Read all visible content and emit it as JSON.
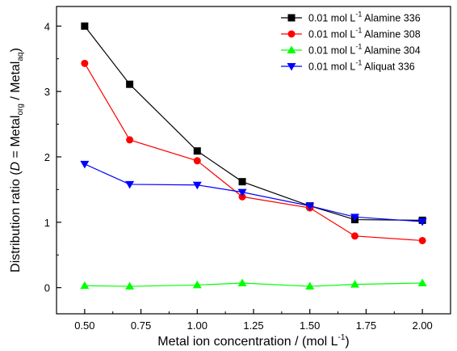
{
  "chart_data": {
    "type": "line",
    "x": [
      0.5,
      0.7,
      1.0,
      1.2,
      1.5,
      1.7,
      2.0
    ],
    "xlim": [
      0.375,
      2.125
    ],
    "ylim": [
      -0.4,
      4.3
    ],
    "xticks": [
      "0.50",
      "0.75",
      "1.00",
      "1.25",
      "1.50",
      "1.75",
      "2.00"
    ],
    "xtick_values": [
      0.5,
      0.75,
      1.0,
      1.25,
      1.5,
      1.75,
      2.0
    ],
    "yticks": [
      "0",
      "1",
      "2",
      "3",
      "4"
    ],
    "ytick_values": [
      0,
      1,
      2,
      3,
      4
    ],
    "xlabel": {
      "prefix": "Metal ion concentration / (mol L",
      "sup": "-1",
      "suffix": ")"
    },
    "ylabel": {
      "prefix": "Distribution ratio (",
      "italic": "D",
      "mid": " = Metal",
      "sub1": "org",
      "mid2": " / Metal",
      "sub2": "aq",
      "suffix": ")"
    },
    "grid": false,
    "legend_position": "top-right",
    "series": [
      {
        "name_prefix": "0.01 mol L",
        "name_sup": "-1",
        "name_suffix": " Alamine 336",
        "color": "#000000",
        "marker": "square",
        "values": [
          4.0,
          3.11,
          2.09,
          1.62,
          1.25,
          1.04,
          1.03
        ]
      },
      {
        "name_prefix": "0.01 mol L",
        "name_sup": "-1",
        "name_suffix": " Alamine 308",
        "color": "#ff0000",
        "marker": "circle",
        "values": [
          3.43,
          2.26,
          1.94,
          1.39,
          1.22,
          0.79,
          0.72
        ]
      },
      {
        "name_prefix": "0.01 mol L",
        "name_sup": "-1",
        "name_suffix": " Alamine 304",
        "color": "#00ff00",
        "marker": "triangle-up",
        "values": [
          0.03,
          0.02,
          0.04,
          0.07,
          0.02,
          0.05,
          0.07
        ]
      },
      {
        "name_prefix": "0.01 mol L",
        "name_sup": "-1",
        "name_suffix": " Aliquat 336",
        "color": "#0000ff",
        "marker": "triangle-down",
        "values": [
          1.89,
          1.58,
          1.57,
          1.46,
          1.25,
          1.08,
          1.01
        ]
      }
    ]
  }
}
